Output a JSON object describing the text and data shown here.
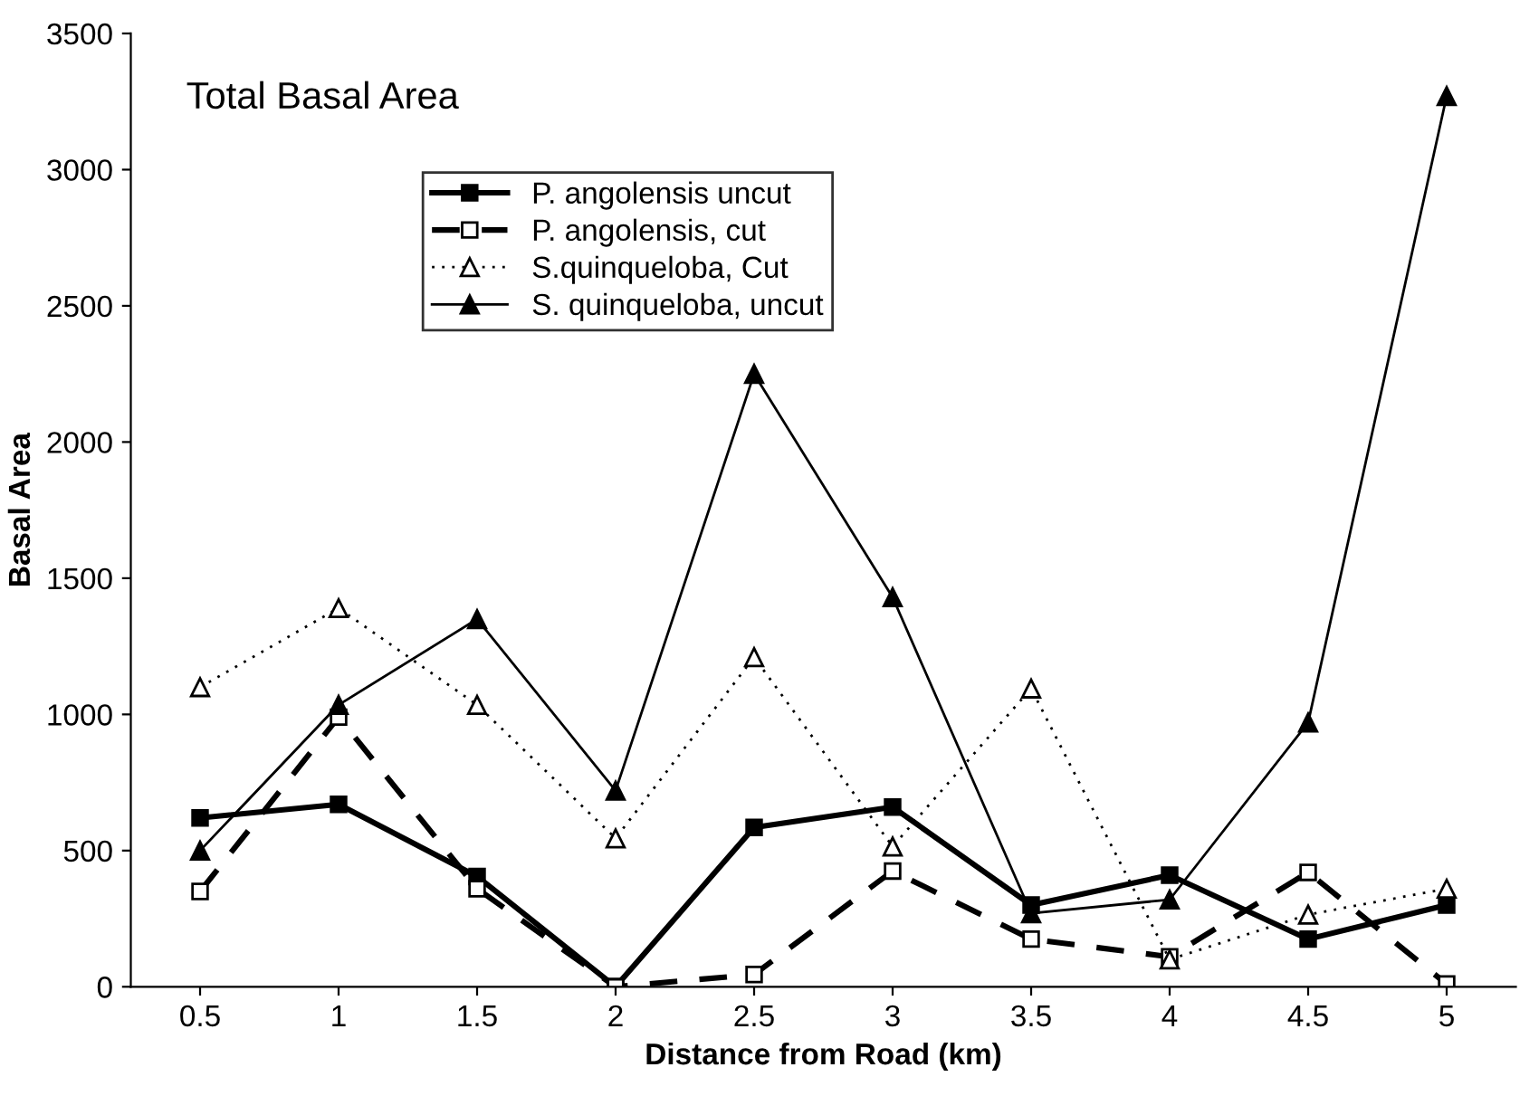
{
  "chart_data": {
    "type": "line",
    "title": "Total Basal Area",
    "xlabel": "Distance from Road (km)",
    "ylabel": "Basal Area",
    "categories": [
      "0.5",
      "1",
      "1.5",
      "2",
      "2.5",
      "3",
      "3.5",
      "4",
      "4.5",
      "5"
    ],
    "series": [
      {
        "name": "P. angolensis uncut",
        "color": "#000000",
        "marker": "square",
        "line_style": "solid",
        "values": [
          620,
          670,
          405,
          0,
          585,
          660,
          300,
          410,
          175,
          300
        ]
      },
      {
        "name": "P. angolensis, cut",
        "color": "#000000",
        "marker": "square",
        "line_style": "dashed",
        "values": [
          350,
          990,
          360,
          0,
          45,
          425,
          175,
          110,
          420,
          10
        ]
      },
      {
        "name": "S.quinqueloba, Cut",
        "color": "#000000",
        "marker": "triangle",
        "line_style": "dotted",
        "values": [
          1100,
          1390,
          1035,
          545,
          1210,
          515,
          1095,
          100,
          265,
          360
        ]
      },
      {
        "name": "S. quinqueloba, uncut",
        "color": "#000000",
        "marker": "triangle",
        "line_style": "solid",
        "values": [
          500,
          1035,
          1350,
          720,
          2250,
          1430,
          270,
          320,
          970,
          3270
        ]
      }
    ],
    "ylim": [
      0,
      3500
    ],
    "yticks": [
      0,
      500,
      1000,
      1500,
      2000,
      2500,
      3000,
      3500
    ],
    "grid": false,
    "legend": "top left"
  }
}
